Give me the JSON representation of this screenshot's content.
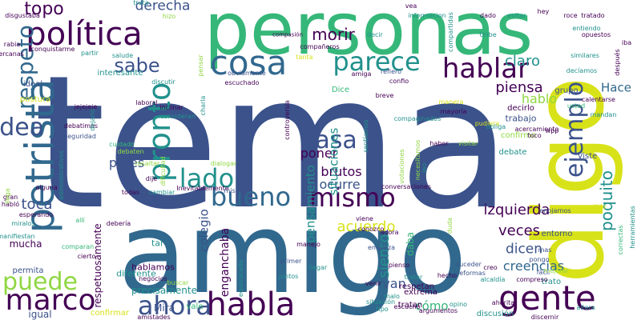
{
  "palette": {
    "purple": "#440154",
    "indigo": "#3b528b",
    "blue": "#31688e",
    "teal": "#21918c",
    "green": "#35b779",
    "lime": "#90d743",
    "yellow": "#d8e219"
  },
  "words": [
    {
      "text": "tema",
      "color": "indigo",
      "rot": 0
    },
    {
      "text": "personas",
      "color": "green",
      "rot": 0
    },
    {
      "text": "amigo",
      "color": "blue",
      "rot": 0
    },
    {
      "text": "digo",
      "color": "yellow",
      "rot": 1
    },
    {
      "text": "política",
      "color": "purple",
      "rot": 0
    },
    {
      "text": "petrista",
      "color": "blue",
      "rot": 1
    },
    {
      "text": "gente",
      "color": "purple",
      "rot": 0
    },
    {
      "text": "habla",
      "color": "purple",
      "rot": 0
    },
    {
      "text": "cosa",
      "color": "blue",
      "rot": 0
    },
    {
      "text": "parece",
      "color": "teal",
      "rot": 0
    },
    {
      "text": "hablar",
      "color": "purple",
      "rot": 0
    },
    {
      "text": "bueno",
      "color": "blue",
      "rot": 0
    },
    {
      "text": "ahora",
      "color": "indigo",
      "rot": 0
    },
    {
      "text": "mismo",
      "color": "purple",
      "rot": 0
    },
    {
      "text": "marco",
      "color": "purple",
      "rot": 0
    },
    {
      "text": "puede",
      "color": "lime",
      "rot": 0
    },
    {
      "text": "pasa",
      "color": "indigo",
      "rot": 0
    },
    {
      "text": "ejemplo",
      "color": "indigo",
      "rot": 1
    },
    {
      "text": "lado",
      "color": "teal",
      "rot": 0
    },
    {
      "text": "pronto",
      "color": "teal",
      "rot": 1
    },
    {
      "text": "idea",
      "color": "indigo",
      "rot": 0
    },
    {
      "text": "respeto",
      "color": "blue",
      "rot": 1
    },
    {
      "text": "sabe",
      "color": "indigo",
      "rot": 0
    },
    {
      "text": "topo",
      "color": "purple",
      "rot": 0
    },
    {
      "text": "derecha",
      "color": "indigo",
      "rot": 0
    },
    {
      "text": "morir",
      "color": "purple",
      "rot": 0
    },
    {
      "text": "claro",
      "color": "teal",
      "rot": 0
    },
    {
      "text": "piensa",
      "color": "purple",
      "rot": 0
    },
    {
      "text": "hablo",
      "color": "lime",
      "rot": 0
    },
    {
      "text": "Hace",
      "color": "blue",
      "rot": 0
    },
    {
      "text": "poquito",
      "color": "teal",
      "rot": 1
    },
    {
      "text": "izquierda",
      "color": "purple",
      "rot": 0
    },
    {
      "text": "veces",
      "color": "purple",
      "rot": 0
    },
    {
      "text": "dicen",
      "color": "indigo",
      "rot": 0
    },
    {
      "text": "creencias",
      "color": "blue",
      "rot": 0
    },
    {
      "text": "acuerdo",
      "color": "yellow",
      "rot": 0
    },
    {
      "text": "siento",
      "color": "teal",
      "rot": 1
    },
    {
      "text": "van",
      "color": "indigo",
      "rot": 0
    },
    {
      "text": "cómo",
      "color": "green",
      "rot": 0
    },
    {
      "text": "poner",
      "color": "purple",
      "rot": 0
    },
    {
      "text": "brutos",
      "color": "purple",
      "rot": 0
    },
    {
      "text": "ocurre",
      "color": "indigo",
      "rot": 0
    },
    {
      "text": "toca",
      "color": "indigo",
      "rot": 0
    },
    {
      "text": "pares",
      "color": "indigo",
      "rot": 0
    },
    {
      "text": "colegio",
      "color": "indigo",
      "rot": 1
    },
    {
      "text": "pensamiento",
      "color": "teal",
      "rot": 1
    },
    {
      "text": "situaciones",
      "color": "teal",
      "rot": 1
    },
    {
      "text": "enganchaba",
      "color": "purple",
      "rot": 1
    },
    {
      "text": "interesante",
      "color": "teal",
      "rot": 0
    },
    {
      "text": "respetuosamente",
      "color": "purple",
      "rot": 1
    },
    {
      "text": "postura",
      "color": "yellow",
      "rot": 0
    },
    {
      "text": "ideal",
      "color": "indigo",
      "rot": 0
    },
    {
      "text": "mucha",
      "color": "purple",
      "rot": 0
    },
    {
      "text": "permita",
      "color": "indigo",
      "rot": 0
    },
    {
      "text": "igual",
      "color": "indigo",
      "rot": 0
    },
    {
      "text": "precisamente",
      "color": "teal",
      "rot": 0
    },
    {
      "text": "diferente",
      "color": "teal",
      "rot": 0
    },
    {
      "text": "hablamos",
      "color": "purple",
      "rot": 0
    },
    {
      "text": "tal",
      "color": "teal",
      "rot": 0
    },
    {
      "text": "trabajo",
      "color": "indigo",
      "rot": 0
    },
    {
      "text": "grupo",
      "color": "indigo",
      "rot": 0
    },
    {
      "text": "decirlo",
      "color": "purple",
      "rot": 0
    },
    {
      "text": "daba",
      "color": "green",
      "rot": 1
    },
    {
      "text": "entorno",
      "color": "indigo",
      "rot": 0
    },
    {
      "text": "trato",
      "color": "teal",
      "rot": 0
    },
    {
      "text": "respetan",
      "color": "purple",
      "rot": 0
    },
    {
      "text": "tratan",
      "color": "purple",
      "rot": 0
    },
    {
      "text": "extrema",
      "color": "purple",
      "rot": 0
    },
    {
      "text": "Mira",
      "color": "indigo",
      "rot": 0
    },
    {
      "text": "vale",
      "color": "green",
      "rot": 0
    },
    {
      "text": "Dice",
      "color": "green",
      "rot": 0
    },
    {
      "text": "confirmo",
      "color": "lime",
      "rot": 0
    },
    {
      "text": "debate",
      "color": "teal",
      "rot": 0
    },
    {
      "text": "confirmar",
      "color": "yellow",
      "rot": 0
    },
    {
      "text": "discusión",
      "color": "teal",
      "rot": 0
    },
    {
      "text": "Viste",
      "color": "indigo",
      "rot": 0
    },
    {
      "text": "trata",
      "color": "teal",
      "rot": 0
    },
    {
      "text": "disgustaba",
      "color": "purple",
      "rot": 0
    },
    {
      "text": "hizo",
      "color": "lime",
      "rot": 0
    },
    {
      "text": "vea",
      "color": "purple",
      "rot": 0
    },
    {
      "text": "compasión",
      "color": "purple",
      "rot": 0
    },
    {
      "text": "informacion",
      "color": "teal",
      "rot": 0
    },
    {
      "text": "dado",
      "color": "purple",
      "rot": 0
    },
    {
      "text": "evitar",
      "color": "teal",
      "rot": 0
    },
    {
      "text": "hey",
      "color": "purple",
      "rot": 0
    },
    {
      "text": "roce",
      "color": "purple",
      "rot": 0
    },
    {
      "text": "tratado",
      "color": "purple",
      "rot": 0
    },
    {
      "text": "entiendo",
      "color": "teal",
      "rot": 0
    },
    {
      "text": "opuestos",
      "color": "purple",
      "rot": 0
    },
    {
      "text": "Uribe",
      "color": "teal",
      "rot": 0
    },
    {
      "text": "decir",
      "color": "teal",
      "rot": 0
    },
    {
      "text": "compañeros",
      "color": "purple",
      "rot": 0
    },
    {
      "text": "cercanas",
      "color": "purple",
      "rot": 0
    },
    {
      "text": "conquistarme",
      "color": "purple",
      "rot": 0
    },
    {
      "text": "partir",
      "color": "teal",
      "rot": 0
    },
    {
      "text": "salude",
      "color": "teal",
      "rot": 0
    },
    {
      "text": "tanta",
      "color": "yellow",
      "rot": 0
    },
    {
      "text": "similares",
      "color": "teal",
      "rot": 0
    },
    {
      "text": "escuchado",
      "color": "purple",
      "rot": 0
    },
    {
      "text": "obviamente",
      "color": "indigo",
      "rot": 0
    },
    {
      "text": "amiga",
      "color": "purple",
      "rot": 0
    },
    {
      "text": "refiero",
      "color": "indigo",
      "rot": 0
    },
    {
      "text": "confio",
      "color": "purple",
      "rot": 0
    },
    {
      "text": "decíamos",
      "color": "teal",
      "rot": 0
    },
    {
      "text": "breve",
      "color": "purple",
      "rot": 0
    },
    {
      "text": "manera",
      "color": "yellow",
      "rot": 0
    },
    {
      "text": "mayoría",
      "color": "purple",
      "rot": 0
    },
    {
      "text": "compaginados",
      "color": "teal",
      "rot": 0
    },
    {
      "text": "usted",
      "color": "green",
      "rot": 0
    },
    {
      "text": "calentarse",
      "color": "purple",
      "rot": 0
    },
    {
      "text": "mandan",
      "color": "teal",
      "rot": 0
    },
    {
      "text": "pudiera",
      "color": "yellow",
      "rot": 0
    },
    {
      "text": "obliga",
      "color": "teal",
      "rot": 0
    },
    {
      "text": "acercamiento",
      "color": "purple",
      "rot": 0
    },
    {
      "text": "toco",
      "color": "purple",
      "rot": 0
    },
    {
      "text": "wpp",
      "color": "purple",
      "rot": 0
    },
    {
      "text": "laboral",
      "color": "purple",
      "rot": 0
    },
    {
      "text": "jejejeje",
      "color": "purple",
      "rot": 0
    },
    {
      "text": "inclinar",
      "color": "purple",
      "rot": 0
    },
    {
      "text": "consideran",
      "color": "teal",
      "rot": 0
    },
    {
      "text": "debatimos",
      "color": "purple",
      "rot": 0
    },
    {
      "text": "seguridad",
      "color": "indigo",
      "rot": 0
    },
    {
      "text": "cuidado",
      "color": "green",
      "rot": 0
    },
    {
      "text": "debaten",
      "color": "lime",
      "rot": 0
    },
    {
      "text": "resaltar",
      "color": "lime",
      "rot": 0
    },
    {
      "text": "dialogar",
      "color": "lime",
      "rot": 0
    },
    {
      "text": "dije",
      "color": "purple",
      "rot": 0
    },
    {
      "text": "haber",
      "color": "purple",
      "rot": 0
    },
    {
      "text": "forma",
      "color": "indigo",
      "rot": 0
    },
    {
      "text": "visitar",
      "color": "lime",
      "rot": 0
    },
    {
      "text": "discutir",
      "color": "teal",
      "rot": 0
    },
    {
      "text": "alguna",
      "color": "purple",
      "rot": 0
    },
    {
      "text": "todas",
      "color": "purple",
      "rot": 0
    },
    {
      "text": "cambiar",
      "color": "teal",
      "rot": 0
    },
    {
      "text": "Inevitablemente",
      "color": "purple",
      "rot": 0
    },
    {
      "text": "misma",
      "color": "indigo",
      "rot": 0
    },
    {
      "text": "conversaciones",
      "color": "purple",
      "rot": 0
    },
    {
      "text": "posible",
      "color": "yellow",
      "rot": 0
    },
    {
      "text": "gran",
      "color": "purple",
      "rot": 0
    },
    {
      "text": "habló",
      "color": "purple",
      "rot": 0
    },
    {
      "text": "esperando",
      "color": "purple",
      "rot": 0
    },
    {
      "text": "miralos",
      "color": "teal",
      "rot": 0
    },
    {
      "text": "allí",
      "color": "green",
      "rot": 0
    },
    {
      "text": "manifiestan",
      "color": "teal",
      "rot": 0
    },
    {
      "text": "debería",
      "color": "purple",
      "rot": 0
    },
    {
      "text": "comparan",
      "color": "green",
      "rot": 0
    },
    {
      "text": "cierto",
      "color": "purple",
      "rot": 0
    },
    {
      "text": "viene",
      "color": "purple",
      "rot": 0
    },
    {
      "text": "conozco",
      "color": "purple",
      "rot": 0
    },
    {
      "text": "enojarnos",
      "color": "indigo",
      "rot": 0
    },
    {
      "text": "adora",
      "color": "purple",
      "rot": 0
    },
    {
      "text": "empieza",
      "color": "indigo",
      "rot": 0
    },
    {
      "text": "manejo",
      "color": "purple",
      "rot": 0
    },
    {
      "text": "primer",
      "color": "indigo",
      "rot": 0
    },
    {
      "text": "llegar",
      "color": "teal",
      "rot": 0
    },
    {
      "text": "suceder",
      "color": "indigo",
      "rot": 0
    },
    {
      "text": "reformas",
      "color": "indigo",
      "rot": 0
    },
    {
      "text": "creo",
      "color": "purple",
      "rot": 0
    },
    {
      "text": "alcaldía",
      "color": "teal",
      "rot": 0
    },
    {
      "text": "mas",
      "color": "indigo",
      "rot": 0
    },
    {
      "text": "pongo",
      "color": "indigo",
      "rot": 0
    },
    {
      "text": "fácil",
      "color": "indigo",
      "rot": 0
    },
    {
      "text": "mejorar",
      "color": "lime",
      "rot": 0
    },
    {
      "text": "compreso",
      "color": "purple",
      "rot": 0
    },
    {
      "text": "hecho",
      "color": "purple",
      "rot": 0
    },
    {
      "text": "pienso",
      "color": "purple",
      "rot": 0
    },
    {
      "text": "tratar",
      "color": "teal",
      "rot": 0
    },
    {
      "text": "juntos",
      "color": "teal",
      "rot": 0
    },
    {
      "text": "venir",
      "color": "purple",
      "rot": 0
    },
    {
      "text": "malo",
      "color": "teal",
      "rot": 0
    },
    {
      "text": "negocios",
      "color": "purple",
      "rot": 0
    },
    {
      "text": "buscar",
      "color": "lime",
      "rot": 0
    },
    {
      "text": "amistades",
      "color": "purple",
      "rot": 0
    },
    {
      "text": "situación",
      "color": "teal",
      "rot": 0
    },
    {
      "text": "tipo",
      "color": "teal",
      "rot": 0
    },
    {
      "text": "escucho",
      "color": "purple",
      "rot": 0
    },
    {
      "text": "opino",
      "color": "teal",
      "rot": 0
    },
    {
      "text": "argumentos",
      "color": "purple",
      "rot": 0
    },
    {
      "text": "ahorita",
      "color": "purple",
      "rot": 0
    },
    {
      "text": "discernir",
      "color": "purple",
      "rot": 0
    },
    {
      "text": "altera",
      "color": "teal",
      "rot": 0
    },
    {
      "text": "rabia",
      "color": "purple",
      "rot": 0
    },
    {
      "text": "compartidas",
      "color": "teal",
      "rot": 1
    },
    {
      "text": "después",
      "color": "purple",
      "rot": 1
    },
    {
      "text": "iba",
      "color": "purple",
      "rot": 0
    },
    {
      "text": "pensar",
      "color": "lime",
      "rot": 1
    },
    {
      "text": "charla",
      "color": "teal",
      "rot": 1
    },
    {
      "text": "dejarlo",
      "color": "teal",
      "rot": 1
    },
    {
      "text": "controversia",
      "color": "purple",
      "rot": 1
    },
    {
      "text": "dificultad",
      "color": "lime",
      "rot": 1
    },
    {
      "text": "sentíamos",
      "color": "teal",
      "rot": 1
    },
    {
      "text": "necesitamos",
      "color": "lime",
      "rot": 1
    },
    {
      "text": "votaciones",
      "color": "lime",
      "rot": 1
    },
    {
      "text": "leo",
      "color": "teal",
      "rot": 1
    },
    {
      "text": "llega",
      "color": "lime",
      "rot": 1
    },
    {
      "text": "administrativos",
      "color": "teal",
      "rot": 1
    },
    {
      "text": "equivocada",
      "color": "teal",
      "rot": 1
    },
    {
      "text": "duda",
      "color": "lime",
      "rot": 1
    },
    {
      "text": "correctas",
      "color": "green",
      "rot": 1
    },
    {
      "text": "herramientas",
      "color": "teal",
      "rot": 1
    }
  ]
}
